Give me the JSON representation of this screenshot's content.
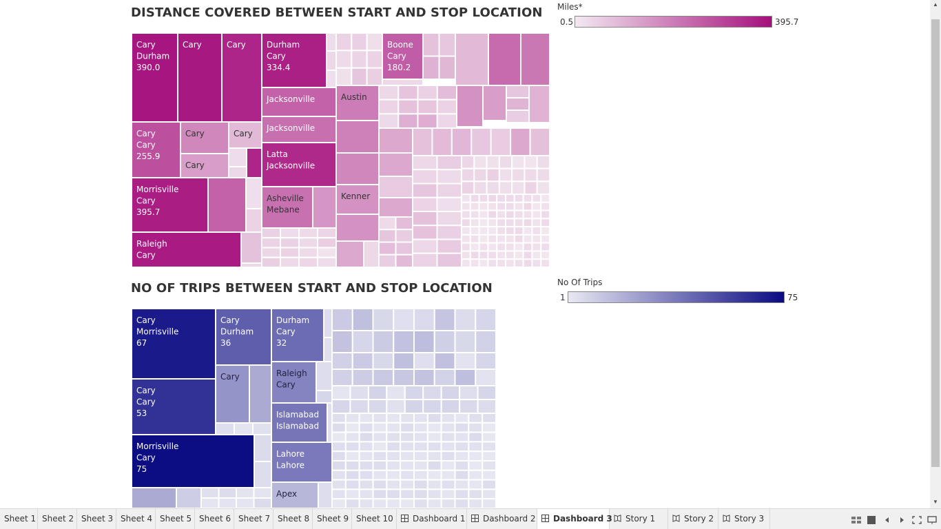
{
  "charts": {
    "miles": {
      "title": "DISTANCE COVERED BETWEEN START AND STOP LOCATION",
      "legend": {
        "title": "Miles*",
        "min": "0.5",
        "max": "395.7",
        "color_low": "#f3e9f1",
        "color_high": "#a50f7c"
      }
    },
    "trips": {
      "title": "NO OF TRIPS BETWEEN START AND STOP LOCATION",
      "legend": {
        "title": "No Of Trips",
        "min": "1",
        "max": "75",
        "color_low": "#e8e8f3",
        "color_high": "#0a0a82"
      }
    }
  },
  "chart_data": [
    {
      "type": "treemap",
      "title": "DISTANCE COVERED BETWEEN START AND STOP LOCATION",
      "measure": "Miles*",
      "color_range": [
        0.5,
        395.7
      ],
      "labeled_items": [
        {
          "start": "Cary",
          "stop": "Durham",
          "value": 390.0
        },
        {
          "start": "Cary",
          "stop": "",
          "value": null
        },
        {
          "start": "Cary",
          "stop": "",
          "value": null
        },
        {
          "start": "Durham",
          "stop": "Cary",
          "value": 334.4
        },
        {
          "start": "Boone",
          "stop": "Cary",
          "value": 180.2
        },
        {
          "start": "Cary",
          "stop": "Cary",
          "value": 255.9
        },
        {
          "start": "Cary",
          "stop": "",
          "value": null
        },
        {
          "start": "Cary",
          "stop": "",
          "value": null
        },
        {
          "start": "Cary",
          "stop": "",
          "value": null
        },
        {
          "start": "Jacksonville",
          "stop": "",
          "value": null
        },
        {
          "start": "Jacksonville",
          "stop": "",
          "value": null
        },
        {
          "start": "Austin",
          "stop": "",
          "value": null
        },
        {
          "start": "Latta",
          "stop": "Jacksonville",
          "value": null
        },
        {
          "start": "Morrisville",
          "stop": "Cary",
          "value": 395.7
        },
        {
          "start": "Asheville",
          "stop": "Mebane",
          "value": null
        },
        {
          "start": "Kenner",
          "stop": "",
          "value": null
        },
        {
          "start": "Raleigh",
          "stop": "Cary",
          "value": null
        }
      ]
    },
    {
      "type": "treemap",
      "title": "NO OF TRIPS BETWEEN START AND STOP LOCATION",
      "measure": "No Of Trips",
      "color_range": [
        1,
        75
      ],
      "labeled_items": [
        {
          "start": "Cary",
          "stop": "Morrisville",
          "value": 67
        },
        {
          "start": "Cary",
          "stop": "Durham",
          "value": 36
        },
        {
          "start": "Durham",
          "stop": "Cary",
          "value": 32
        },
        {
          "start": "Raleigh",
          "stop": "Cary",
          "value": null
        },
        {
          "start": "Cary",
          "stop": "",
          "value": null
        },
        {
          "start": "Cary",
          "stop": "Cary",
          "value": 53
        },
        {
          "start": "Islamabad",
          "stop": "Islamabad",
          "value": null
        },
        {
          "start": "Lahore",
          "stop": "Lahore",
          "value": null
        },
        {
          "start": "Morrisville",
          "stop": "Cary",
          "value": 75
        },
        {
          "start": "Apex",
          "stop": "",
          "value": null
        }
      ]
    }
  ],
  "tabs": [
    {
      "label": "Sheet 1",
      "icon": "none",
      "active": false
    },
    {
      "label": "Sheet 2",
      "icon": "none",
      "active": false
    },
    {
      "label": "Sheet 3",
      "icon": "none",
      "active": false
    },
    {
      "label": "Sheet 4",
      "icon": "none",
      "active": false
    },
    {
      "label": "Sheet 5",
      "icon": "none",
      "active": false
    },
    {
      "label": "Sheet 6",
      "icon": "none",
      "active": false
    },
    {
      "label": "Sheet 7",
      "icon": "none",
      "active": false
    },
    {
      "label": "Sheet 8",
      "icon": "none",
      "active": false
    },
    {
      "label": "Sheet 9",
      "icon": "none",
      "active": false
    },
    {
      "label": "Sheet 10",
      "icon": "none",
      "active": false
    },
    {
      "label": "Dashboard 1",
      "icon": "dashboard-icon",
      "active": false
    },
    {
      "label": "Dashboard 2",
      "icon": "dashboard-icon",
      "active": false
    },
    {
      "label": "Dashboard 3",
      "icon": "dashboard-icon",
      "active": true
    },
    {
      "label": "Story 1",
      "icon": "story-icon",
      "active": false
    },
    {
      "label": "Story 2",
      "icon": "story-icon",
      "active": false
    },
    {
      "label": "Story 3",
      "icon": "story-icon",
      "active": false
    }
  ],
  "controls": [
    "sheet-sorter-icon",
    "filmstrip-icon",
    "previous-tab-icon",
    "next-tab-icon",
    "fullscreen-icon",
    "presentation-icon"
  ]
}
